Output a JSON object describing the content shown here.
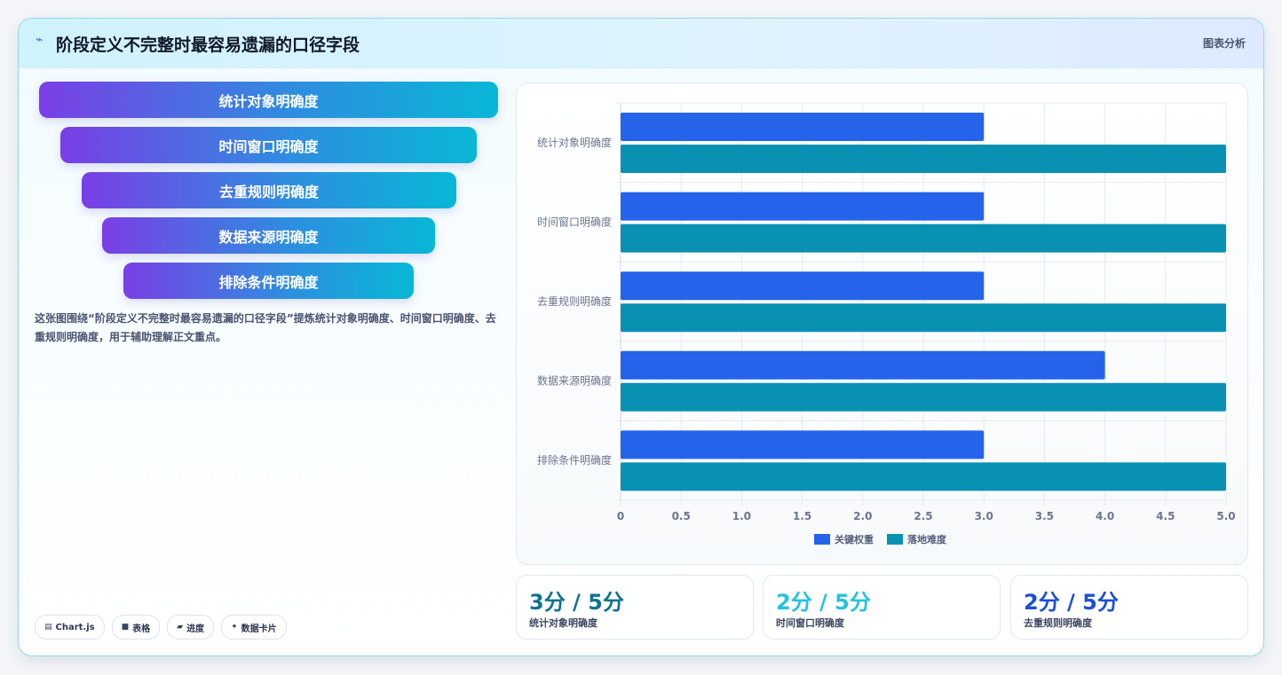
{
  "header": {
    "icon": "chart-line-icon",
    "title": "阶段定义不完整时最容易遗漏的口径字段",
    "tag": "图表分析"
  },
  "funnel": [
    {
      "label": "统计对象明确度"
    },
    {
      "label": "时间窗口明确度"
    },
    {
      "label": "去重规则明确度"
    },
    {
      "label": "数据来源明确度"
    },
    {
      "label": "排除条件明确度"
    }
  ],
  "description": "这张图围绕“阶段定义不完整时最容易遗漏的口径字段”提炼统计对象明确度、时间窗口明确度、去重规则明确度，用于辅助理解正文重点。",
  "chips": [
    {
      "icon": "chart-icon",
      "glyph": "▤",
      "label": "Chart.js"
    },
    {
      "icon": "table-icon",
      "glyph": "■",
      "label": "表格"
    },
    {
      "icon": "progress-icon",
      "glyph": "▰",
      "label": "进度"
    },
    {
      "icon": "card-icon",
      "glyph": "✦",
      "label": "数据卡片"
    }
  ],
  "chart_data": {
    "type": "bar",
    "orientation": "horizontal",
    "categories": [
      "统计对象明确度",
      "时间窗口明确度",
      "去重规则明确度",
      "数据来源明确度",
      "排除条件明确度"
    ],
    "series": [
      {
        "name": "关键权重",
        "color": "#2563eb",
        "values": [
          3,
          3,
          3,
          4,
          3
        ]
      },
      {
        "name": "落地难度",
        "color": "#0891b2",
        "values": [
          5,
          5,
          5,
          5,
          5
        ]
      }
    ],
    "xlim": [
      0,
      5
    ],
    "xticks": [
      "0",
      "0.5",
      "1.0",
      "1.5",
      "2.0",
      "2.5",
      "3.0",
      "3.5",
      "4.0",
      "4.5",
      "5.0"
    ],
    "grid": true,
    "legend": "bottom"
  },
  "stats": [
    {
      "value": "3分 / 5分",
      "label": "统计对象明确度",
      "color": "#0e7490"
    },
    {
      "value": "2分 / 5分",
      "label": "时间窗口明确度",
      "color": "#22c3df"
    },
    {
      "value": "2分 / 5分",
      "label": "去重规则明确度",
      "color": "#1d4ed8"
    }
  ]
}
